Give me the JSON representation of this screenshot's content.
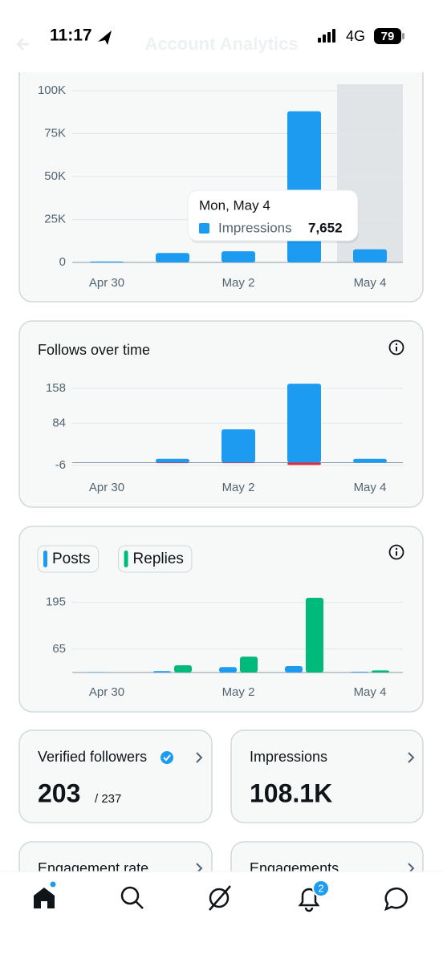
{
  "status_bar": {
    "time": "11:17",
    "network": "4G",
    "battery": "79"
  },
  "header": {
    "title": "Account Analytics"
  },
  "chart_data": [
    {
      "type": "bar",
      "categories": [
        "Apr 30",
        null,
        "May 2",
        null,
        "May 4"
      ],
      "series": [
        {
          "name": "Impressions",
          "color": "#1d9bf0",
          "values": [
            500,
            5500,
            6500,
            88000,
            7652
          ],
          "value_labels": [
            null,
            null,
            null,
            null,
            "7,652"
          ]
        }
      ],
      "ylim": [
        0,
        100000
      ],
      "yticks": [
        0,
        {
          "value": 25000,
          "label": "25K"
        },
        {
          "value": 50000,
          "label": "50K"
        },
        {
          "value": 75000,
          "label": "75K"
        },
        {
          "value": 100000,
          "label": "100K"
        }
      ],
      "grid": true,
      "highlight_index": 4,
      "tooltip": {
        "title": "Mon, May 4",
        "index": 4
      }
    },
    {
      "type": "bar",
      "title": "Follows over time",
      "categories": [
        "Apr 30",
        null,
        "May 2",
        null,
        "May 4"
      ],
      "series": [
        {
          "color": "#1d9bf0",
          "values": [
            0,
            8,
            71,
            168,
            8
          ]
        },
        {
          "color": "#f4212e",
          "values": [
            0,
            -1,
            -1,
            -5,
            0
          ]
        }
      ],
      "ylim": [
        -6,
        170
      ],
      "yticks": [
        -6,
        84,
        158
      ],
      "grid": true,
      "stacked": true,
      "info_icon": true
    },
    {
      "type": "bar",
      "categories": [
        "Apr 30",
        null,
        "May 2",
        null,
        "May 4"
      ],
      "series": [
        {
          "name": "Posts",
          "color": "#1d9bf0",
          "values": [
            1,
            4,
            15,
            18,
            2
          ]
        },
        {
          "name": "Replies",
          "color": "#00ba7c",
          "values": [
            0,
            20,
            44,
            208,
            6
          ]
        }
      ],
      "ylim": [
        0,
        210
      ],
      "yticks": [
        65,
        195
      ],
      "grid": true,
      "grouped": true,
      "legend": "top-left",
      "info_icon": true
    }
  ],
  "cards": [
    {
      "title": "Verified followers",
      "value": "203",
      "suffix": "/ 237"
    },
    {
      "title": "Impressions",
      "value": "108.1K"
    },
    {
      "title": "Engagement rate"
    },
    {
      "title": "Engagements"
    }
  ],
  "nav": {
    "badge": "2"
  }
}
